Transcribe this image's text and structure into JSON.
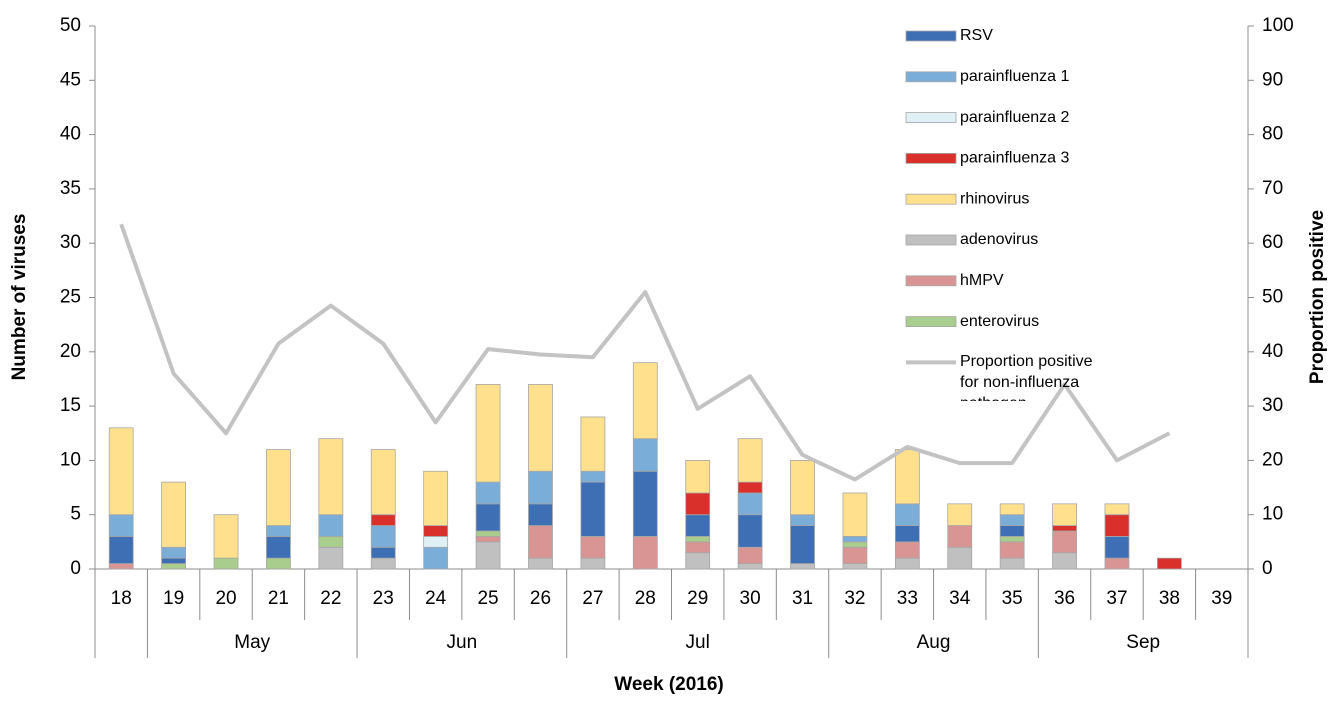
{
  "chart_data": {
    "type": "bar",
    "x_label": "Week (2016)",
    "y_label": "Number of viruses",
    "y2_label": "Proportion positive",
    "categories": [
      "18",
      "19",
      "20",
      "21",
      "22",
      "23",
      "24",
      "25",
      "26",
      "27",
      "28",
      "29",
      "30",
      "31",
      "32",
      "33",
      "34",
      "35",
      "36",
      "37",
      "38",
      "39"
    ],
    "months": [
      null,
      "May",
      "May",
      "May",
      "May",
      "Jun",
      "Jun",
      "Jun",
      "Jun",
      "Jul",
      "Jul",
      "Jul",
      "Jul",
      "Jul",
      "Aug",
      "Aug",
      "Aug",
      "Aug",
      "Sep",
      "Sep",
      "Sep",
      "Sep"
    ],
    "ylim": [
      0,
      50
    ],
    "yticks": [
      0,
      5,
      10,
      15,
      20,
      25,
      30,
      35,
      40,
      45,
      50
    ],
    "y2lim": [
      0,
      100
    ],
    "y2ticks": [
      0,
      10,
      20,
      30,
      40,
      50,
      60,
      70,
      80,
      90,
      100
    ],
    "series": [
      {
        "name": "RSV",
        "color": "#3e6fb5",
        "values": [
          2.5,
          0.5,
          0,
          2,
          0,
          1,
          0,
          2.5,
          2,
          5,
          6,
          2,
          3,
          3.5,
          0,
          1.5,
          0,
          1,
          0,
          2,
          0,
          0
        ]
      },
      {
        "name": "parainfluenza 1",
        "color": "#7aaed8",
        "values": [
          2,
          1,
          0,
          1,
          2,
          2,
          2,
          2,
          3,
          1,
          3,
          0,
          2,
          1,
          0.5,
          2,
          0,
          1,
          0,
          0,
          0,
          0
        ]
      },
      {
        "name": "parainfluenza 2",
        "color": "#dff1f5",
        "values": [
          0,
          0,
          0,
          0,
          0,
          0,
          1,
          0,
          0,
          0,
          0,
          0,
          0,
          0,
          0,
          0,
          0,
          0,
          0,
          0,
          0,
          0
        ]
      },
      {
        "name": "parainfluenza 3",
        "color": "#d9302c",
        "values": [
          0,
          0,
          0,
          0,
          0,
          1,
          1,
          0,
          0,
          0,
          0,
          2,
          1,
          0,
          0,
          0,
          0,
          0,
          0.5,
          2,
          1,
          0
        ]
      },
      {
        "name": "rhinovirus",
        "color": "#ffe08d",
        "values": [
          8,
          6,
          4,
          7,
          7,
          6,
          5,
          9,
          8,
          5,
          7,
          3,
          4,
          5,
          4,
          5,
          2,
          1,
          2,
          1,
          0,
          0
        ]
      },
      {
        "name": "adenovirus",
        "color": "#c0c0c0",
        "values": [
          0,
          0,
          0,
          0,
          2,
          1,
          0,
          2.5,
          1,
          1,
          0,
          1.5,
          0.5,
          0.5,
          0.5,
          1,
          2,
          1,
          1.5,
          0,
          0,
          0
        ]
      },
      {
        "name": "hMPV",
        "color": "#d99594",
        "values": [
          0.5,
          0,
          0,
          0,
          0,
          0,
          0,
          0.5,
          3,
          2,
          3,
          1,
          1.5,
          0,
          1.5,
          1.5,
          2,
          1.5,
          2,
          1,
          0,
          0
        ]
      },
      {
        "name": "enterovirus",
        "color": "#a8cd8d",
        "values": [
          0,
          0.5,
          1,
          1,
          1,
          0,
          0,
          0.5,
          0,
          0,
          0,
          0.5,
          0,
          0,
          0.5,
          0,
          0,
          0.5,
          0,
          0,
          0,
          0
        ]
      },
      {
        "name": "Proportion positive for non-influenza pathogen",
        "type": "line",
        "axis": "y2",
        "color": "#c3c3c3",
        "values": [
          63.5,
          36,
          25,
          41.5,
          48.5,
          41.5,
          27,
          40.5,
          39.5,
          39,
          51,
          29.5,
          35.5,
          21,
          16.5,
          22.5,
          19.5,
          19.5,
          34,
          20,
          25,
          null
        ]
      }
    ]
  }
}
